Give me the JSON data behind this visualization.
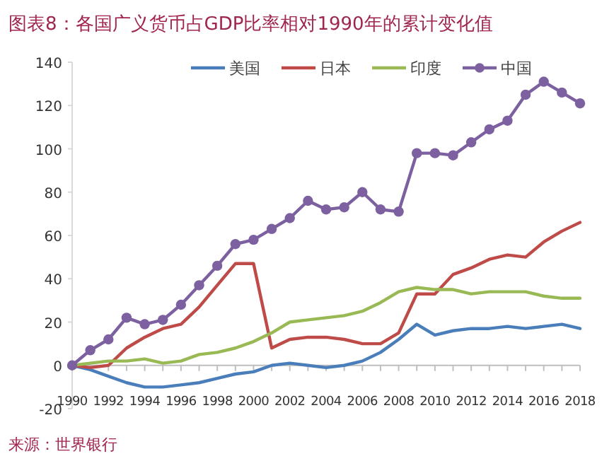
{
  "chart_data": {
    "type": "line",
    "title": "图表8：各国广义货币占GDP比率相对1990年的累计变化值",
    "annotations": [
      "来源：世界银行"
    ],
    "x": [
      1990,
      1991,
      1992,
      1993,
      1994,
      1995,
      1996,
      1997,
      1998,
      1999,
      2000,
      2001,
      2002,
      2003,
      2004,
      2005,
      2006,
      2007,
      2008,
      2009,
      2010,
      2011,
      2012,
      2013,
      2014,
      2015,
      2016,
      2017,
      2018
    ],
    "series": [
      {
        "name": "美国",
        "color": "#4a7ebb",
        "marker": "none",
        "values": [
          0,
          -2,
          -5,
          -8,
          -10,
          -10,
          -9,
          -8,
          -6,
          -4,
          -3,
          0,
          1,
          0,
          -1,
          0,
          2,
          6,
          12,
          19,
          14,
          16,
          17,
          17,
          18,
          17,
          18,
          19,
          17
        ]
      },
      {
        "name": "日本",
        "color": "#be4b48",
        "marker": "none",
        "values": [
          0,
          -1,
          0,
          8,
          13,
          17,
          19,
          27,
          37,
          47,
          47,
          8,
          12,
          13,
          13,
          12,
          10,
          10,
          15,
          33,
          33,
          42,
          45,
          49,
          51,
          50,
          57,
          62,
          66
        ]
      },
      {
        "name": "印度",
        "color": "#98b954",
        "marker": "none",
        "values": [
          0,
          1,
          2,
          2,
          3,
          1,
          2,
          5,
          6,
          8,
          11,
          15,
          20,
          21,
          22,
          23,
          25,
          29,
          34,
          36,
          35,
          35,
          33,
          34,
          34,
          34,
          32,
          31,
          31
        ]
      },
      {
        "name": "中国",
        "color": "#7d60a0",
        "marker": "circle",
        "values": [
          0,
          7,
          12,
          22,
          19,
          21,
          28,
          37,
          46,
          56,
          58,
          63,
          68,
          76,
          72,
          73,
          80,
          72,
          71,
          98,
          98,
          97,
          103,
          109,
          113,
          125,
          131,
          126,
          121
        ]
      }
    ],
    "xlim": [
      1990,
      2018
    ],
    "xticks": [
      1990,
      {
        "value": 1991,
        "label": null
      },
      1992,
      {
        "value": 1993,
        "label": null
      },
      1994,
      {
        "value": 1995,
        "label": null
      },
      1996,
      {
        "value": 1997,
        "label": null
      },
      1998,
      {
        "value": 1999,
        "label": null
      },
      2000,
      {
        "value": 2001,
        "label": null
      },
      2002,
      {
        "value": 2003,
        "label": null
      },
      2004,
      {
        "value": 2005,
        "label": null
      },
      2006,
      {
        "value": 2007,
        "label": null
      },
      2008,
      {
        "value": 2009,
        "label": null
      },
      2010,
      {
        "value": 2011,
        "label": null
      },
      2012,
      {
        "value": 2013,
        "label": null
      },
      2014,
      {
        "value": 2015,
        "label": null
      },
      2016,
      {
        "value": 2017,
        "label": null
      },
      2018
    ],
    "ylim": [
      -20,
      140
    ],
    "yticks": [
      -20,
      0,
      20,
      40,
      60,
      80,
      100,
      120,
      140
    ],
    "grid": false,
    "legend": "top",
    "line_style": "solid"
  }
}
